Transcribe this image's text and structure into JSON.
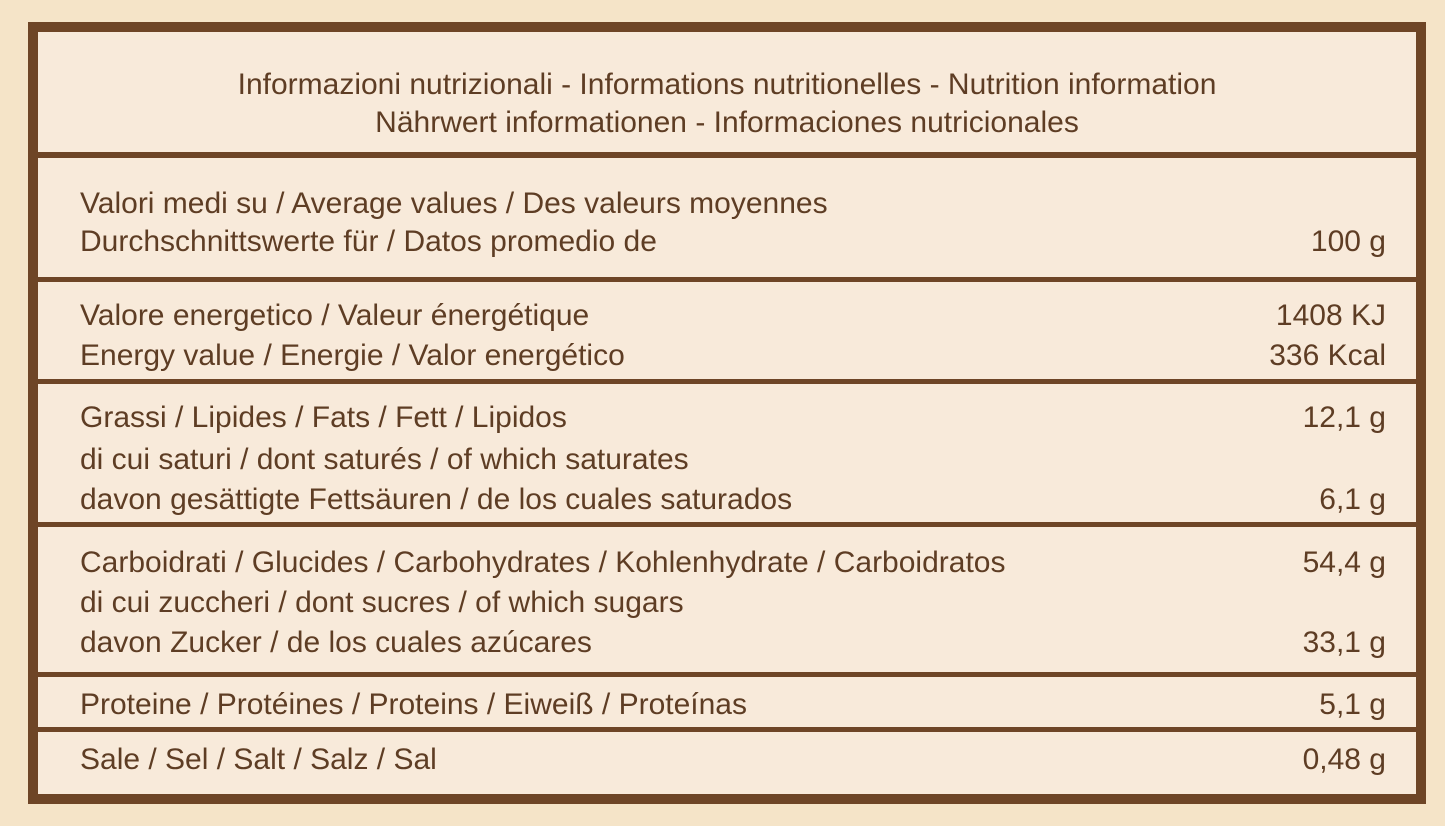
{
  "header": {
    "line1": "Informazioni nutrizionali - Informations nutritionelles - Nutrition information",
    "line2": "Nährwert informationen - Informaciones nutricionales"
  },
  "rows": [
    {
      "lines": [
        {
          "label": "Valori medi su / Average values / Des valeurs moyennes",
          "value": ""
        },
        {
          "label": "Durchschnittswerte für / Datos promedio de",
          "value": "100 g"
        }
      ]
    },
    {
      "lines": [
        {
          "label": "Valore energetico / Valeur énergétique",
          "value": "1408 KJ"
        },
        {
          "label": "Energy value / Energie / Valor energético",
          "value": "336 Kcal"
        }
      ]
    },
    {
      "lines": [
        {
          "label": "Grassi / Lipides / Fats / Fett / Lipidos",
          "value": "12,1 g"
        },
        {
          "label": "di cui saturi / dont saturés / of which saturates",
          "value": ""
        },
        {
          "label": "davon gesättigte Fettsäuren / de los cuales saturados",
          "value": "6,1 g"
        }
      ]
    },
    {
      "lines": [
        {
          "label": "Carboidrati / Glucides / Carbohydrates / Kohlenhydrate / Carboidratos",
          "value": "54,4 g"
        },
        {
          "label": "di cui zuccheri / dont sucres / of which sugars",
          "value": ""
        },
        {
          "label": "davon Zucker / de los cuales azúcares",
          "value": "33,1 g"
        }
      ]
    },
    {
      "lines": [
        {
          "label": "Proteine / Protéines / Proteins / Eiweiß / Proteínas",
          "value": "5,1 g"
        }
      ]
    },
    {
      "lines": [
        {
          "label": "Sale / Sel / Salt / Salz / Sal",
          "value": "0,48 g"
        }
      ]
    }
  ],
  "colors": {
    "background": "#f5e4c8",
    "border": "#6e4526",
    "text": "#5e3d24"
  }
}
